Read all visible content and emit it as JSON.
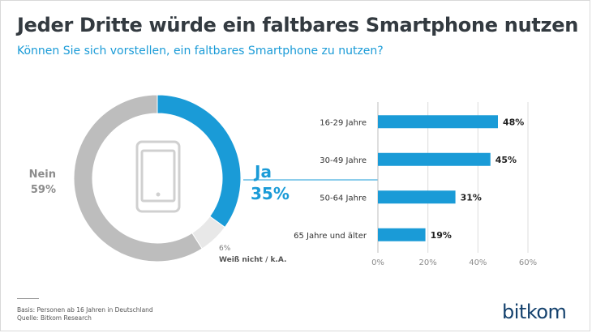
{
  "title": "Jeder Dritte würde ein faltbares Smartphone nutzen",
  "subtitle": "Können Sie sich vorstellen, ein faltbares Smartphone zu nutzen?",
  "footnote": {
    "basis": "Basis: Personen ab 16 Jahren in Deutschland",
    "source": "Quelle: Bitkom Research"
  },
  "logo": "bitkom",
  "colors": {
    "accent": "#1a9bd7",
    "grey": "#bdbdbd",
    "light_grey": "#e8e8e8",
    "text": "#333a40"
  },
  "chart_data": [
    {
      "type": "pie",
      "variant": "donut",
      "slices": [
        {
          "label": "Ja",
          "value": 35,
          "value_label": "35%",
          "color": "#1a9bd7"
        },
        {
          "label": "Weiß nicht / k.A.",
          "value": 6,
          "value_label": "6%",
          "color": "#e8e8e8"
        },
        {
          "label": "Nein",
          "value": 59,
          "value_label": "59%",
          "color": "#bdbdbd"
        }
      ],
      "center_icon": "smartphone-icon"
    },
    {
      "type": "bar",
      "orientation": "horizontal",
      "categories": [
        "16-29 Jahre",
        "30-49 Jahre",
        "50-64 Jahre",
        "65 Jahre und älter"
      ],
      "values": [
        48,
        45,
        31,
        19
      ],
      "value_labels": [
        "48%",
        "45%",
        "31%",
        "19%"
      ],
      "xlim": [
        0,
        60
      ],
      "xticks": [
        0,
        20,
        40,
        60
      ],
      "xtick_labels": [
        "0%",
        "20%",
        "40%",
        "60%"
      ],
      "grid": true,
      "color": "#1a9bd7"
    }
  ]
}
